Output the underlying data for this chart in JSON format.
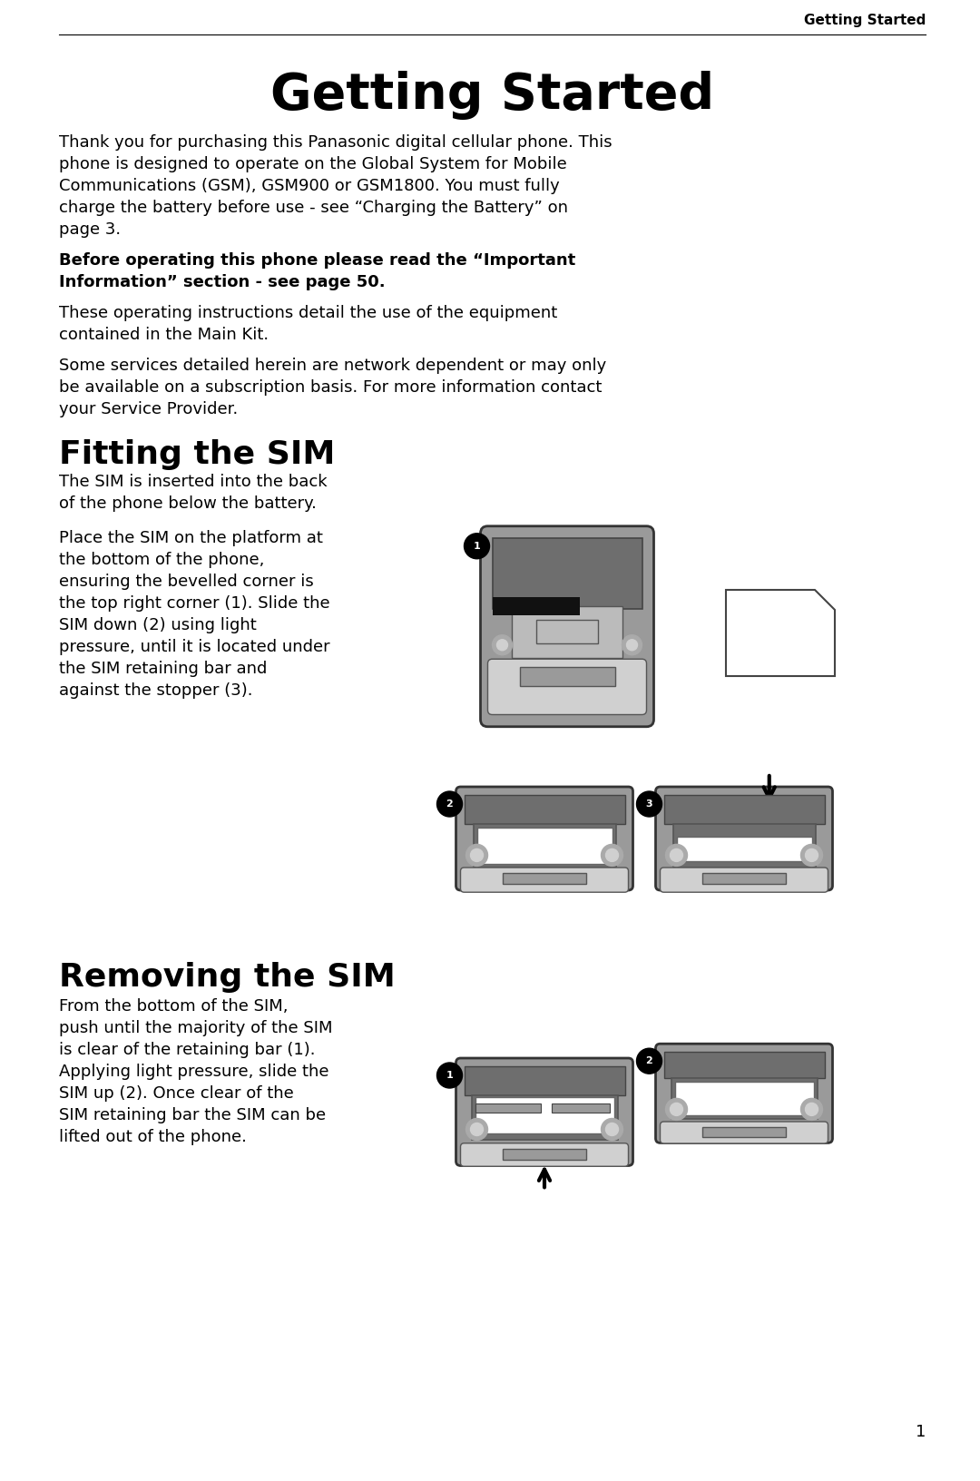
{
  "header_text": "Getting Started",
  "main_title": "Getting Started",
  "para1_lines": [
    "Thank you for purchasing this Panasonic digital cellular phone. This",
    "phone is designed to operate on the Global System for Mobile",
    "Communications (GSM), GSM900 or GSM1800. You must fully",
    "charge the battery before use - see “Charging the Battery” on",
    "page 3."
  ],
  "bold_warning_lines": [
    "Before operating this phone please read the “Important",
    "Information” section - see page 50."
  ],
  "para2_lines": [
    "These operating instructions detail the use of the equipment",
    "contained in the Main Kit."
  ],
  "para3_lines": [
    "Some services detailed herein are network dependent or may only",
    "be available on a subscription basis. For more information contact",
    "your Service Provider."
  ],
  "section1_title": "Fitting the SIM",
  "s1t1_lines": [
    "The SIM is inserted into the back",
    "of the phone below the battery."
  ],
  "s1t2_lines": [
    "Place the SIM on the platform at",
    "the bottom of the phone,",
    "ensuring the bevelled corner is",
    "the top right corner (1). Slide the",
    "SIM down (2) using light",
    "pressure, until it is located under",
    "the SIM retaining bar and",
    "against the stopper (3)."
  ],
  "section2_title": "Removing the SIM",
  "s2t1_lines": [
    "From the bottom of the SIM,",
    "push until the majority of the SIM",
    "is clear of the retaining bar (1).",
    "Applying light pressure, slide the",
    "SIM up (2). Once clear of the",
    "SIM retaining bar the SIM can be",
    "lifted out of the phone."
  ],
  "page_number": "1",
  "bg_color": "#ffffff",
  "text_color": "#000000",
  "gray_dark": "#6e6e6e",
  "gray_mid": "#9a9a9a",
  "gray_light": "#bbbbbb",
  "gray_lighter": "#d0d0d0",
  "gray_screws": "#aaaaaa"
}
